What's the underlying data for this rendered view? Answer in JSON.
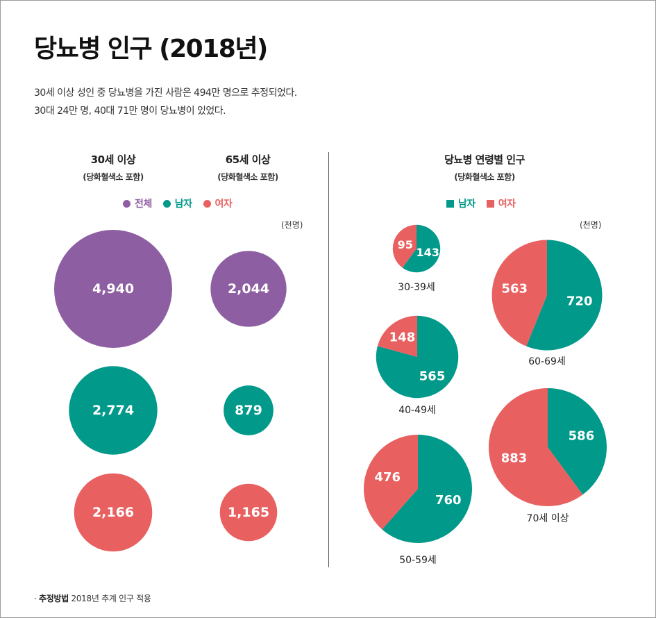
{
  "header": {
    "title": "당뇨병 인구 (2018년)",
    "description": [
      "30세 이상 성인 중 당뇨병을 가진 사람은 494만 명으로 추정되었다.",
      "30대 24만 명, 40대 71만 명이 당뇨병이 있었다."
    ]
  },
  "colors": {
    "total": "#8e5ea2",
    "male": "#00998a",
    "female": "#e96060"
  },
  "left_panel": {
    "columns": [
      {
        "title": "30세 이상",
        "subtitle": "(당화혈색소 포함)"
      },
      {
        "title": "65세 이상",
        "subtitle": "(당화혈색소 포함)"
      }
    ],
    "legend": [
      "전체",
      "남자",
      "여자"
    ],
    "unit": "(천명)"
  },
  "right_panel": {
    "title": "당뇨병 연령별 인구",
    "subtitle": "(당화혈색소 포함)",
    "legend": [
      "남자",
      "여자"
    ],
    "unit": "(천명)"
  },
  "chart_data": [
    {
      "type": "bubble",
      "unit": "천명",
      "columns": [
        "30세 이상",
        "65세 이상"
      ],
      "series": [
        {
          "name": "전체",
          "values": [
            4940,
            2044
          ],
          "labels": [
            "4,940",
            "2,044"
          ]
        },
        {
          "name": "남자",
          "values": [
            2774,
            879
          ],
          "labels": [
            "2,774",
            "879"
          ]
        },
        {
          "name": "여자",
          "values": [
            2166,
            1165
          ],
          "labels": [
            "2,166",
            "1,165"
          ]
        }
      ]
    },
    {
      "type": "pie",
      "unit": "천명",
      "categories": [
        "30-39세",
        "40-49세",
        "50-59세",
        "60-69세",
        "70세 이상"
      ],
      "series": [
        {
          "name": "남자",
          "values": [
            143,
            565,
            760,
            720,
            586
          ]
        },
        {
          "name": "여자",
          "values": [
            95,
            148,
            476,
            563,
            883
          ]
        }
      ]
    }
  ],
  "footer": {
    "label": "추정방법",
    "text": "2018년 추계 인구 적용"
  }
}
